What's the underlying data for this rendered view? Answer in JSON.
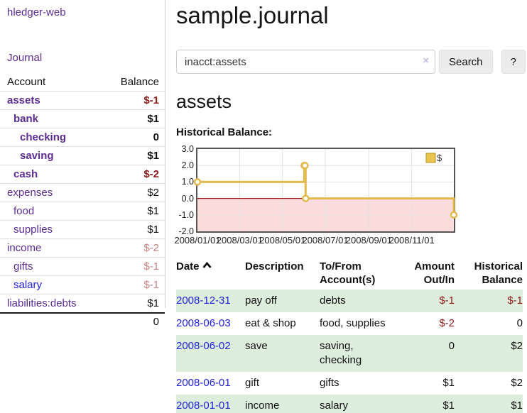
{
  "sidebar": {
    "brand": "hledger-web",
    "journal_link": "Journal",
    "accounts": {
      "col_account": "Account",
      "col_balance": "Balance",
      "rows": [
        {
          "name": "assets",
          "balance": "$-1",
          "depth": 1,
          "bold": true,
          "neg": "strong",
          "color": "purple"
        },
        {
          "name": "bank",
          "balance": "$1",
          "depth": 2,
          "bold": true,
          "neg": "none",
          "color": "purple"
        },
        {
          "name": "checking",
          "balance": "0",
          "depth": 3,
          "bold": true,
          "neg": "none",
          "color": "purple"
        },
        {
          "name": "saving",
          "balance": "$1",
          "depth": 3,
          "bold": true,
          "neg": "none",
          "color": "purple"
        },
        {
          "name": "cash",
          "balance": "$-2",
          "depth": 2,
          "bold": true,
          "neg": "strong",
          "color": "purple"
        },
        {
          "name": "expenses",
          "balance": "$2",
          "depth": 1,
          "bold": false,
          "neg": "none",
          "color": "purple"
        },
        {
          "name": "food",
          "balance": "$1",
          "depth": 2,
          "bold": false,
          "neg": "none",
          "color": "purple"
        },
        {
          "name": "supplies",
          "balance": "$1",
          "depth": 2,
          "bold": false,
          "neg": "none",
          "color": "purple"
        },
        {
          "name": "income",
          "balance": "$-2",
          "depth": 1,
          "bold": false,
          "neg": "weak",
          "color": "purple"
        },
        {
          "name": "gifts",
          "balance": "$-1",
          "depth": 2,
          "bold": false,
          "neg": "weak",
          "color": "purple"
        },
        {
          "name": "salary",
          "balance": "$-1",
          "depth": 2,
          "bold": false,
          "neg": "weak",
          "color": "blue"
        },
        {
          "name": "liabilities:debts",
          "balance": "$1",
          "depth": 1,
          "bold": false,
          "neg": "none",
          "color": "purple"
        }
      ],
      "total": "0"
    }
  },
  "main": {
    "title": "sample.journal",
    "search": {
      "value": "inacct:assets",
      "clear": "×",
      "search_button": "Search",
      "help_button": "?"
    },
    "account_title": "assets",
    "chart_label": "Historical Balance:"
  },
  "chart_data": {
    "type": "line",
    "title": "Historical Balance",
    "step": true,
    "series": [
      {
        "name": "$",
        "points": [
          {
            "date": "2008-01-01",
            "day": 1,
            "value": 1
          },
          {
            "date": "2008-06-01",
            "day": 153,
            "value": 2
          },
          {
            "date": "2008-06-02",
            "day": 154,
            "value": 2
          },
          {
            "date": "2008-06-03",
            "day": 155,
            "value": 0
          },
          {
            "date": "2008-12-31",
            "day": 366,
            "value": -1
          }
        ]
      }
    ],
    "x_ticks": [
      {
        "label": "2008/01/01",
        "day": 1
      },
      {
        "label": "2008/03/01",
        "day": 61
      },
      {
        "label": "2008/05/01",
        "day": 122
      },
      {
        "label": "2008/07/01",
        "day": 183
      },
      {
        "label": "2008/09/01",
        "day": 245
      },
      {
        "label": "2008/11/01",
        "day": 306
      }
    ],
    "y_ticks": [
      "3.0",
      "2.0",
      "1.0",
      "0.0",
      "-1.0",
      "-2.0"
    ],
    "ylim": [
      -2,
      3
    ],
    "xlim_days": [
      1,
      366
    ],
    "legend": {
      "label": "$",
      "position": "top-right"
    },
    "colors": {
      "line": "#e3ba4d",
      "marker_fill": "#ffffff",
      "legend_fill": "#e9c44f",
      "legend_border": "#bb9221",
      "negative_region": "#fbdcdc",
      "zero_line": "#a31515",
      "grid": "#e2e2e2",
      "border": "#555555"
    }
  },
  "transactions": {
    "headers": {
      "date": "Date",
      "description": "Description",
      "accounts": "To/From Account(s)",
      "amount": "Amount Out/In",
      "balance": "Historical Balance"
    },
    "rows": [
      {
        "date": "2008-12-31",
        "description": "pay off",
        "accounts": "debts",
        "amount": "$-1",
        "amount_neg": true,
        "balance": "$-1",
        "balance_neg": true
      },
      {
        "date": "2008-06-03",
        "description": "eat & shop",
        "accounts": "food, supplies",
        "amount": "$-2",
        "amount_neg": true,
        "balance": "0",
        "balance_neg": false
      },
      {
        "date": "2008-06-02",
        "description": "save",
        "accounts": "saving, checking",
        "amount": "0",
        "amount_neg": false,
        "balance": "$2",
        "balance_neg": false
      },
      {
        "date": "2008-06-01",
        "description": "gift",
        "accounts": "gifts",
        "amount": "$1",
        "amount_neg": false,
        "balance": "$2",
        "balance_neg": false
      },
      {
        "date": "2008-01-01",
        "description": "income",
        "accounts": "salary",
        "amount": "$1",
        "amount_neg": false,
        "balance": "$1",
        "balance_neg": false
      }
    ]
  }
}
